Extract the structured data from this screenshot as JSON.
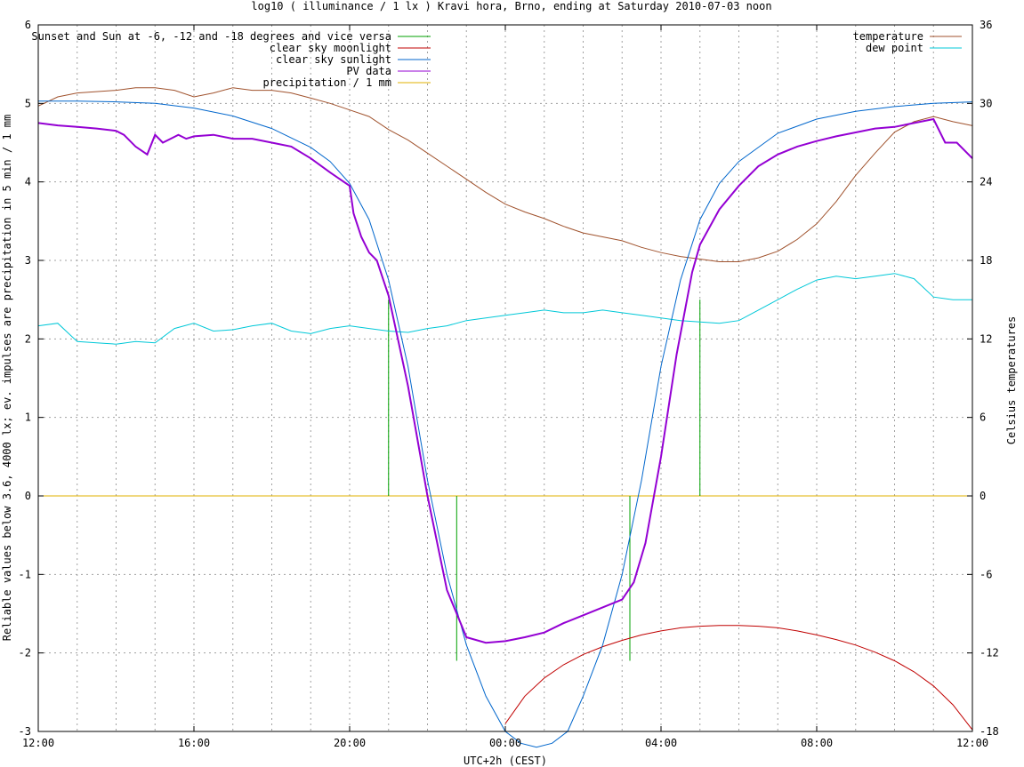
{
  "chart_data": {
    "type": "line",
    "title": "log10 ( illuminance / 1 lx ) Kravi hora, Brno, ending at Saturday 2010-07-03 noon",
    "xlabel": "UTC+2h (CEST)",
    "ylabel": "Reliable values below 3.6, 4000 lx; ev. impulses are precipitation in 5 min / 1 mm",
    "y2label": "Celsius temperatures",
    "x_unit": "hours from 12:00 (2010-07-02) to 12:00 (2010-07-03)",
    "xlim": [
      0,
      24
    ],
    "ylim": [
      -3,
      6
    ],
    "y2lim": [
      -18,
      36
    ],
    "x_ticks": [
      {
        "x": 0,
        "label": "12:00"
      },
      {
        "x": 4,
        "label": "16:00"
      },
      {
        "x": 8,
        "label": "20:00"
      },
      {
        "x": 12,
        "label": "00:00"
      },
      {
        "x": 16,
        "label": "04:00"
      },
      {
        "x": 20,
        "label": "08:00"
      },
      {
        "x": 24,
        "label": "12:00"
      }
    ],
    "y_ticks": [
      {
        "y": -3,
        "label": "-3"
      },
      {
        "y": -2,
        "label": "-2"
      },
      {
        "y": -1,
        "label": "-1"
      },
      {
        "y": 0,
        "label": "0"
      },
      {
        "y": 1,
        "label": "1"
      },
      {
        "y": 2,
        "label": "2"
      },
      {
        "y": 3,
        "label": "3"
      },
      {
        "y": 4,
        "label": "4"
      },
      {
        "y": 5,
        "label": "5"
      },
      {
        "y": 6,
        "label": "6"
      }
    ],
    "y2_ticks": [
      {
        "y": -18,
        "label": "-18"
      },
      {
        "y": -12,
        "label": "-12"
      },
      {
        "y": -6,
        "label": "-6"
      },
      {
        "y": 0,
        "label": "0"
      },
      {
        "y": 6,
        "label": "6"
      },
      {
        "y": 12,
        "label": "12"
      },
      {
        "y": 18,
        "label": "18"
      },
      {
        "y": 24,
        "label": "24"
      },
      {
        "y": 30,
        "label": "30"
      },
      {
        "y": 36,
        "label": "36"
      }
    ],
    "grid": true,
    "legend_left": [
      {
        "name": "Sunset and Sun at -6, -12 and -18 degrees and vice versa",
        "color": "#00a000"
      },
      {
        "name": "clear sky moonlight",
        "color": "#c00000"
      },
      {
        "name": "clear sky sunlight",
        "color": "#0066cc"
      },
      {
        "name": "PV data",
        "color": "#9400d3"
      },
      {
        "name": "precipitation / 1 mm",
        "color": "#e0b000"
      }
    ],
    "legend_right": [
      {
        "name": "temperature",
        "color": "#a0522d"
      },
      {
        "name": "dew point",
        "color": "#00c8d8"
      }
    ],
    "sun_impulses": [
      {
        "x": 9.0,
        "y": 2.5
      },
      {
        "x": 9.75,
        "y": 0
      },
      {
        "x": 10.75,
        "y": -2.1
      },
      {
        "x": 15.2,
        "y": -2.1
      },
      {
        "x": 16.25,
        "y": 0
      },
      {
        "x": 17.0,
        "y": 2.5
      }
    ],
    "precipitation": {
      "x": [
        0,
        24
      ],
      "y": [
        0,
        0
      ]
    },
    "sunlight": {
      "x": [
        0,
        1,
        2,
        3,
        4,
        5,
        6,
        7,
        7.5,
        8,
        8.5,
        9,
        9.5,
        10,
        10.5,
        11,
        11.5,
        12,
        12.4,
        12.8,
        13.2,
        13.6,
        14,
        14.5,
        15,
        15.5,
        16,
        16.5,
        17,
        17.5,
        18,
        19,
        20,
        21,
        22,
        23,
        24
      ],
      "y": [
        5.03,
        5.03,
        5.02,
        5.0,
        4.94,
        4.84,
        4.68,
        4.44,
        4.26,
        3.98,
        3.52,
        2.75,
        1.65,
        0.2,
        -1.0,
        -1.9,
        -2.55,
        -3.0,
        -3.15,
        -3.2,
        -3.15,
        -3.0,
        -2.55,
        -1.9,
        -1.0,
        0.2,
        1.65,
        2.75,
        3.52,
        3.98,
        4.26,
        4.62,
        4.8,
        4.9,
        4.96,
        5.0,
        5.02
      ]
    },
    "moonlight": {
      "x": [
        12,
        12.5,
        13,
        13.5,
        14,
        14.5,
        15,
        15.5,
        16,
        16.5,
        17,
        17.5,
        18,
        18.5,
        19,
        19.5,
        20,
        20.5,
        21,
        21.5,
        22,
        22.5,
        23,
        23.5,
        24
      ],
      "y": [
        -2.9,
        -2.55,
        -2.32,
        -2.15,
        -2.02,
        -1.92,
        -1.84,
        -1.77,
        -1.72,
        -1.68,
        -1.66,
        -1.65,
        -1.65,
        -1.66,
        -1.68,
        -1.72,
        -1.77,
        -1.83,
        -1.9,
        -1.99,
        -2.1,
        -2.24,
        -2.42,
        -2.66,
        -2.98
      ]
    },
    "pv_data": {
      "x": [
        0,
        0.5,
        1,
        1.5,
        2,
        2.2,
        2.5,
        2.8,
        3,
        3.2,
        3.4,
        3.6,
        3.8,
        4,
        4.5,
        5,
        5.5,
        6,
        6.5,
        7,
        7.5,
        8,
        8.1,
        8.3,
        8.5,
        8.7,
        9,
        9.5,
        10,
        10.5,
        11,
        11.5,
        12,
        12.5,
        13,
        13.5,
        14,
        14.5,
        15,
        15.3,
        15.6,
        16,
        16.4,
        16.8,
        17,
        17.5,
        18,
        18.5,
        19,
        19.5,
        20,
        20.5,
        21,
        21.5,
        22,
        22.5,
        23,
        23.3,
        23.6,
        24
      ],
      "y": [
        4.75,
        4.72,
        4.7,
        4.68,
        4.65,
        4.6,
        4.45,
        4.35,
        4.6,
        4.5,
        4.55,
        4.6,
        4.55,
        4.58,
        4.6,
        4.55,
        4.55,
        4.5,
        4.45,
        4.3,
        4.12,
        3.95,
        3.6,
        3.3,
        3.1,
        3.0,
        2.55,
        1.4,
        0.0,
        -1.2,
        -1.8,
        -1.87,
        -1.85,
        -1.8,
        -1.74,
        -1.62,
        -1.52,
        -1.42,
        -1.32,
        -1.1,
        -0.6,
        0.5,
        1.8,
        2.85,
        3.2,
        3.65,
        3.95,
        4.2,
        4.35,
        4.45,
        4.52,
        4.58,
        4.63,
        4.68,
        4.7,
        4.75,
        4.8,
        4.5,
        4.5,
        4.3
      ]
    },
    "temperature": {
      "x": [
        0,
        0.5,
        1,
        2,
        2.5,
        3,
        3.5,
        4,
        4.5,
        5,
        5.5,
        6,
        6.5,
        7,
        7.5,
        8,
        8.5,
        9,
        9.5,
        10,
        10.5,
        11,
        11.5,
        12,
        12.5,
        13,
        13.5,
        14,
        14.5,
        15,
        15.5,
        16,
        16.5,
        17,
        17.5,
        18,
        18.5,
        19,
        19.5,
        20,
        20.5,
        21,
        21.5,
        22,
        22.5,
        23,
        23.5,
        24
      ],
      "y": [
        29.8,
        30.5,
        30.8,
        31.0,
        31.2,
        31.2,
        31.0,
        30.5,
        30.8,
        31.2,
        31.0,
        31.0,
        30.8,
        30.4,
        30.0,
        29.5,
        29.0,
        28.0,
        27.2,
        26.2,
        25.2,
        24.2,
        23.2,
        22.3,
        21.7,
        21.2,
        20.6,
        20.1,
        19.8,
        19.5,
        19.0,
        18.6,
        18.3,
        18.1,
        17.9,
        17.9,
        18.2,
        18.7,
        19.6,
        20.8,
        22.5,
        24.5,
        26.2,
        27.8,
        28.6,
        29.0,
        28.6,
        28.3
      ]
    },
    "dew_point": {
      "x": [
        0,
        0.5,
        1,
        1.5,
        2,
        2.5,
        3,
        3.5,
        4,
        4.5,
        5,
        5.5,
        6,
        6.5,
        7,
        7.5,
        8,
        8.5,
        9,
        9.5,
        10,
        10.5,
        11,
        11.5,
        12,
        12.5,
        13,
        13.5,
        14,
        14.5,
        15,
        15.5,
        16,
        16.5,
        17,
        17.5,
        18,
        18.5,
        19,
        19.5,
        20,
        20.5,
        21,
        21.5,
        22,
        22.5,
        23,
        23.5,
        24
      ],
      "y": [
        13.0,
        13.2,
        11.8,
        11.7,
        11.6,
        11.8,
        11.7,
        12.8,
        13.2,
        12.6,
        12.7,
        13.0,
        13.2,
        12.6,
        12.4,
        12.8,
        13.0,
        12.8,
        12.6,
        12.5,
        12.8,
        13.0,
        13.4,
        13.6,
        13.8,
        14.0,
        14.2,
        14.0,
        14.0,
        14.2,
        14.0,
        13.8,
        13.6,
        13.4,
        13.3,
        13.2,
        13.4,
        14.2,
        15.0,
        15.8,
        16.5,
        16.8,
        16.6,
        16.8,
        17.0,
        16.6,
        15.2,
        15.0,
        15.0
      ]
    }
  }
}
